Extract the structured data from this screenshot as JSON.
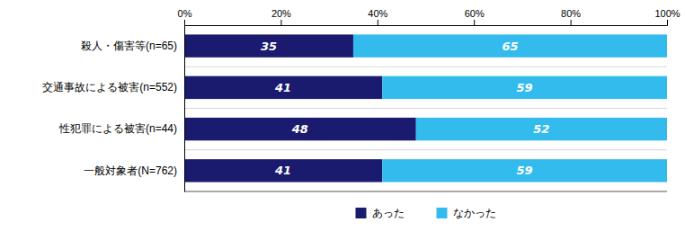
{
  "chart_data": {
    "type": "bar",
    "orientation": "horizontal",
    "stacked": true,
    "data_labels": true,
    "grid": false,
    "legend": "bottom",
    "categories": [
      "殺人・傷害等(n=65)",
      "交通事故による被害(n=552)",
      "性犯罪による被害(n=44)",
      "一般対象者(N=762)"
    ],
    "series": [
      {
        "name": "あった",
        "color": "#1a1a6e",
        "values": [
          35,
          41,
          48,
          41
        ]
      },
      {
        "name": "なかった",
        "color": "#33bbee",
        "values": [
          65,
          59,
          52,
          59
        ]
      }
    ],
    "xlim": [
      0,
      100
    ],
    "xticks": [
      {
        "value": 0,
        "label": "0%"
      },
      {
        "value": 20,
        "label": "20%"
      },
      {
        "value": 40,
        "label": "40%"
      },
      {
        "value": 60,
        "label": "60%"
      },
      {
        "value": 80,
        "label": "80%"
      },
      {
        "value": 100,
        "label": "100%"
      }
    ]
  }
}
